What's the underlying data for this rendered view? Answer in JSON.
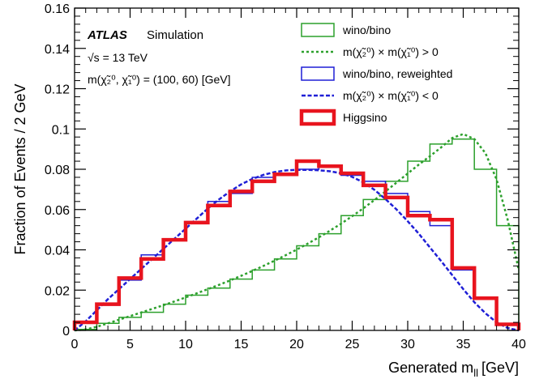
{
  "chart_data": {
    "type": "line",
    "xlabel": "Generated m",
    "xlabel_sub": "ll",
    "xlabel_unit": "[GeV]",
    "ylabel": "Fraction of Events / 2 GeV",
    "xlim": [
      0,
      40
    ],
    "ylim": [
      0,
      0.16
    ],
    "xticks": [
      "0",
      "5",
      "10",
      "15",
      "20",
      "25",
      "30",
      "35",
      "40"
    ],
    "yticks": [
      "0",
      "0.02",
      "0.04",
      "0.06",
      "0.08",
      "0.1",
      "0.12",
      "0.14",
      "0.16"
    ],
    "grid": false,
    "legend_position": "top-right",
    "annotations": {
      "atlas": "ATLAS",
      "simulation": "Simulation",
      "energy": "√s = 13 TeV",
      "masses": "m(χ̃₂⁰, χ̃₁⁰) = (100, 60) [GeV]"
    },
    "bin_edges": [
      0,
      2,
      4,
      6,
      8,
      10,
      12,
      14,
      16,
      18,
      20,
      22,
      24,
      26,
      28,
      30,
      32,
      34,
      36,
      38,
      40
    ],
    "series": [
      {
        "name": "wino/bino",
        "kind": "histogram",
        "color": "#2ca02c",
        "values": [
          0.0005,
          0.0035,
          0.0065,
          0.009,
          0.013,
          0.0175,
          0.021,
          0.0255,
          0.03,
          0.0355,
          0.042,
          0.048,
          0.057,
          0.065,
          0.074,
          0.084,
          0.0925,
          0.095,
          0.08,
          0.052
        ]
      },
      {
        "name": "m(χ̃₂⁰) × m(χ̃₁⁰) > 0",
        "kind": "curve",
        "style": "dotted",
        "color": "#2ca02c",
        "x": [
          0,
          1,
          2,
          3,
          4,
          5,
          6,
          7,
          8,
          9,
          10,
          11,
          12,
          13,
          14,
          15,
          16,
          17,
          18,
          19,
          20,
          21,
          22,
          23,
          24,
          25,
          26,
          27,
          28,
          29,
          30,
          31,
          32,
          33,
          34,
          35,
          36,
          37,
          38,
          39,
          40
        ],
        "y": [
          0.0,
          0.0005,
          0.0018,
          0.0035,
          0.0053,
          0.0071,
          0.0089,
          0.0107,
          0.0125,
          0.0144,
          0.0164,
          0.0184,
          0.0205,
          0.0226,
          0.0248,
          0.0271,
          0.0295,
          0.032,
          0.0346,
          0.0373,
          0.0401,
          0.0431,
          0.0462,
          0.0495,
          0.053,
          0.0567,
          0.0606,
          0.0647,
          0.069,
          0.0734,
          0.0779,
          0.0823,
          0.0865,
          0.0908,
          0.0955,
          0.0975,
          0.095,
          0.088,
          0.075,
          0.055,
          0.03
        ]
      },
      {
        "name": "wino/bino, reweighted",
        "kind": "histogram",
        "color": "#1f1fd6",
        "values": [
          0.0035,
          0.0125,
          0.025,
          0.0375,
          0.045,
          0.054,
          0.064,
          0.068,
          0.076,
          0.078,
          0.08,
          0.082,
          0.077,
          0.074,
          0.068,
          0.059,
          0.052,
          0.03,
          0.016,
          0.003
        ]
      },
      {
        "name": "m(χ̃₂⁰) × m(χ̃₁⁰) < 0",
        "kind": "curve",
        "style": "dashed",
        "color": "#1f1fd6",
        "x": [
          0,
          1,
          2,
          3,
          4,
          5,
          6,
          7,
          8,
          9,
          10,
          11,
          12,
          13,
          14,
          15,
          16,
          17,
          18,
          19,
          20,
          21,
          22,
          23,
          24,
          25,
          26,
          27,
          28,
          29,
          30,
          31,
          32,
          33,
          34,
          35,
          36,
          37,
          38,
          39,
          40
        ],
        "y": [
          0.0,
          0.0045,
          0.01,
          0.0155,
          0.0205,
          0.0255,
          0.0305,
          0.0355,
          0.0405,
          0.0455,
          0.0505,
          0.0555,
          0.0605,
          0.065,
          0.069,
          0.0725,
          0.0752,
          0.0772,
          0.0786,
          0.0794,
          0.0797,
          0.0797,
          0.0795,
          0.079,
          0.078,
          0.0762,
          0.0735,
          0.0698,
          0.0652,
          0.06,
          0.0542,
          0.048,
          0.0412,
          0.0345,
          0.0275,
          0.0205,
          0.014,
          0.0085,
          0.004,
          0.0012,
          0.0
        ]
      },
      {
        "name": "Higgsino",
        "kind": "histogram",
        "color": "#e8141e",
        "thick": true,
        "values": [
          0.004,
          0.013,
          0.026,
          0.0355,
          0.045,
          0.0535,
          0.062,
          0.069,
          0.074,
          0.0775,
          0.084,
          0.0815,
          0.078,
          0.072,
          0.066,
          0.057,
          0.055,
          0.031,
          0.016,
          0.003
        ]
      }
    ]
  }
}
